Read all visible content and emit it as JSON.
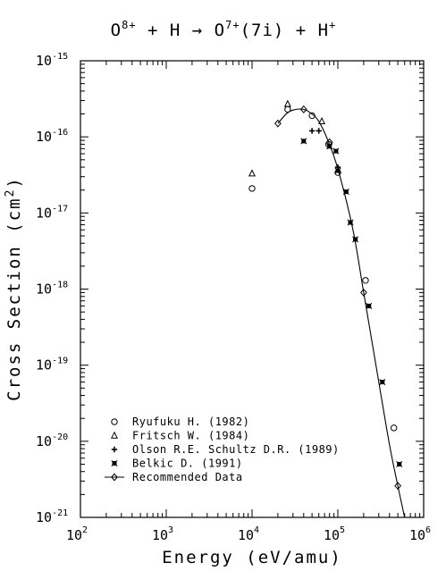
{
  "title": {
    "base1": "O",
    "sup1": "8+",
    "mid1": " + H → ",
    "base2": "O",
    "sup2": "7+",
    "mid2": "(7i) + H",
    "sup3": "+"
  },
  "xaxis": {
    "label": "Energy (eV/amu)"
  },
  "yaxis": {
    "label_pre": "Cross Section (cm",
    "label_sup": "2",
    "label_post": ")"
  },
  "chart_data": {
    "type": "scatter",
    "xscale": "log",
    "yscale": "log",
    "xlim": [
      100,
      1000000
    ],
    "ylim": [
      1e-21,
      1e-15
    ],
    "xticks": [
      {
        "base": "10",
        "exp": "2",
        "value": 100
      },
      {
        "base": "10",
        "exp": "3",
        "value": 1000
      },
      {
        "base": "10",
        "exp": "4",
        "value": 10000
      },
      {
        "base": "10",
        "exp": "5",
        "value": 100000
      },
      {
        "base": "10",
        "exp": "6",
        "value": 1000000
      }
    ],
    "yticks": [
      {
        "base": "10",
        "exp": "-15",
        "value": 1e-15
      },
      {
        "base": "10",
        "exp": "-16",
        "value": 1e-16
      },
      {
        "base": "10",
        "exp": "-17",
        "value": 1e-17
      },
      {
        "base": "10",
        "exp": "-18",
        "value": 1e-18
      },
      {
        "base": "10",
        "exp": "-19",
        "value": 1e-19
      },
      {
        "base": "10",
        "exp": "-20",
        "value": 1e-20
      },
      {
        "base": "10",
        "exp": "-21",
        "value": 1e-21
      }
    ],
    "legend_position": "bottom-left",
    "series": [
      {
        "name": "Ryufuku H. (1982)",
        "marker": "circle",
        "points": [
          {
            "x": 10000,
            "y": 2.1e-17
          },
          {
            "x": 26000,
            "y": 2.3e-16
          },
          {
            "x": 50000,
            "y": 1.9e-16
          },
          {
            "x": 78000,
            "y": 8e-17
          },
          {
            "x": 100000,
            "y": 3.4e-17
          },
          {
            "x": 210000,
            "y": 1.3e-18
          },
          {
            "x": 450000,
            "y": 1.5e-20
          }
        ]
      },
      {
        "name": "Fritsch W. (1984)",
        "marker": "triangle",
        "points": [
          {
            "x": 10000,
            "y": 3.3e-17
          },
          {
            "x": 26000,
            "y": 2.7e-16
          },
          {
            "x": 65000,
            "y": 1.6e-16
          }
        ]
      },
      {
        "name": "Olson R.E. Schultz D.R. (1989)",
        "marker": "plus",
        "points": [
          {
            "x": 50000,
            "y": 1.2e-16
          },
          {
            "x": 60000,
            "y": 1.2e-16
          },
          {
            "x": 100000,
            "y": 4e-17
          }
        ]
      },
      {
        "name": "Belkic D. (1991)",
        "marker": "star",
        "points": [
          {
            "x": 40000,
            "y": 8.8e-17
          },
          {
            "x": 80000,
            "y": 7.5e-17
          },
          {
            "x": 95000,
            "y": 6.5e-17
          },
          {
            "x": 100000,
            "y": 3.6e-17
          },
          {
            "x": 125000,
            "y": 1.9e-17
          },
          {
            "x": 140000,
            "y": 7.5e-18
          },
          {
            "x": 160000,
            "y": 4.5e-18
          },
          {
            "x": 230000,
            "y": 6e-19
          },
          {
            "x": 330000,
            "y": 6e-20
          },
          {
            "x": 520000,
            "y": 5e-21
          }
        ]
      },
      {
        "name": "Recommended Data",
        "marker": "diamond",
        "line": true,
        "points": [
          {
            "x": 20000,
            "y": 1.5e-16
          },
          {
            "x": 25000,
            "y": 2e-16
          },
          {
            "x": 30000,
            "y": 2.25e-16
          },
          {
            "x": 40000,
            "y": 2.3e-16
          },
          {
            "x": 50000,
            "y": 2e-16
          },
          {
            "x": 60000,
            "y": 1.6e-16
          },
          {
            "x": 75000,
            "y": 9.5e-17
          },
          {
            "x": 100000,
            "y": 3.8e-17
          },
          {
            "x": 150000,
            "y": 6e-18
          },
          {
            "x": 200000,
            "y": 9e-19
          },
          {
            "x": 300000,
            "y": 6e-20
          },
          {
            "x": 400000,
            "y": 9e-21
          },
          {
            "x": 500000,
            "y": 2.6e-21
          },
          {
            "x": 600000,
            "y": 1e-21
          }
        ],
        "marker_points": [
          {
            "x": 20000,
            "y": 1.5e-16
          },
          {
            "x": 40000,
            "y": 2.3e-16
          },
          {
            "x": 80000,
            "y": 8.5e-17
          },
          {
            "x": 200000,
            "y": 9e-19
          },
          {
            "x": 500000,
            "y": 2.6e-21
          }
        ]
      }
    ]
  }
}
